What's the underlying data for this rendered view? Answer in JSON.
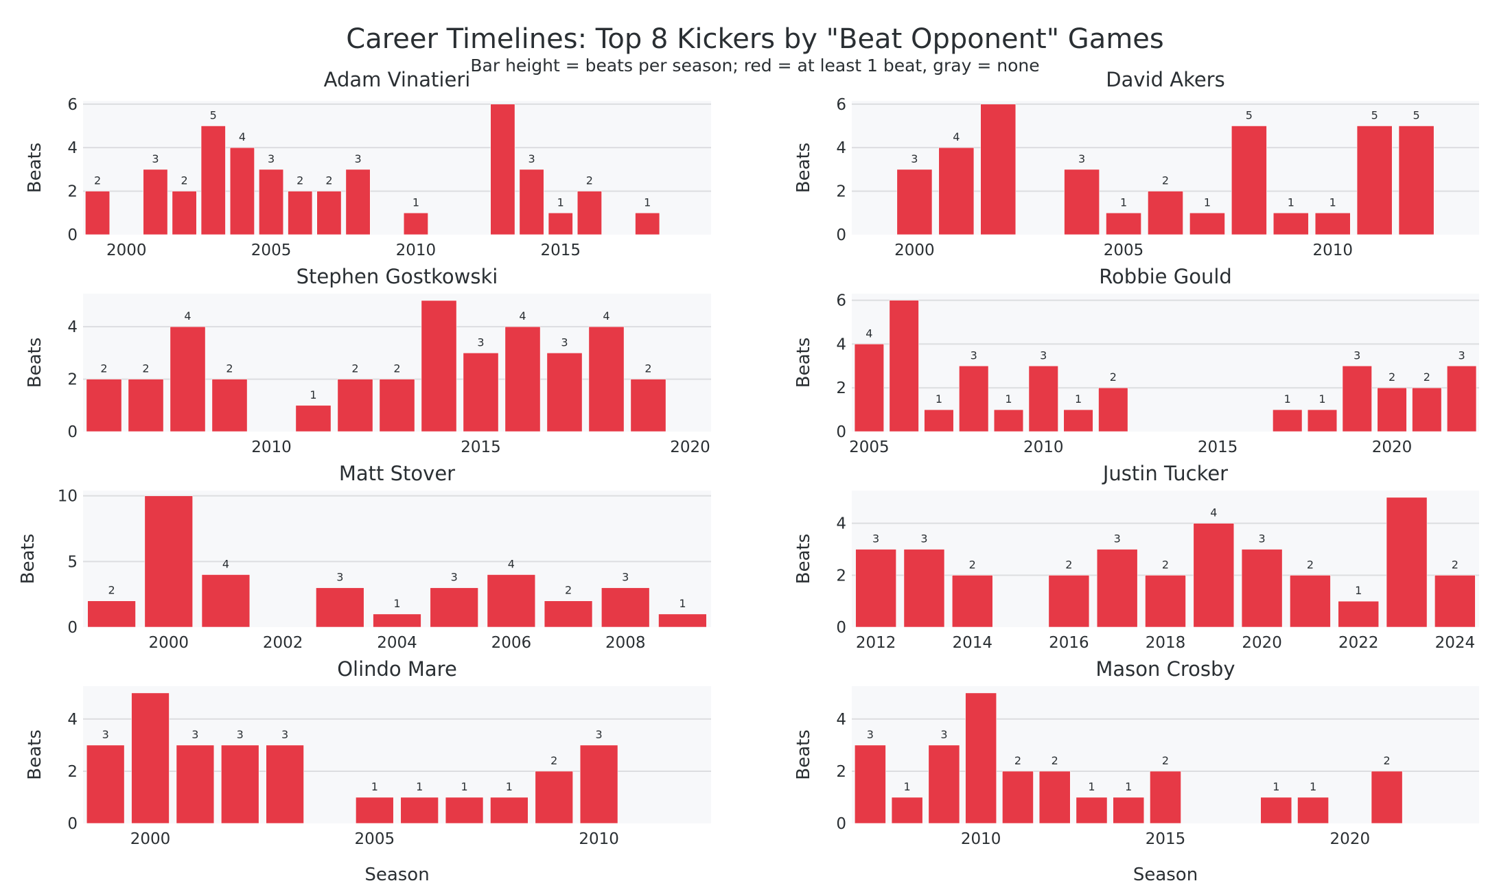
{
  "title": "Career Timelines: Top 8 Kickers by \"Beat Opponent\" Games",
  "subtitle": "Bar height = beats per season; red = at least 1 beat, gray = none",
  "colors": {
    "beat": "#e63946",
    "none": "#b0b0b0",
    "plot_bg": "#f7f8fa",
    "grid": "#dcdde0"
  },
  "chart_data": [
    {
      "type": "bar",
      "title": "Adam Vinatieri",
      "xlabel": "",
      "ylabel": "Beats",
      "xlim": [
        1998.5,
        2020.2
      ],
      "ylim": [
        0,
        6.15
      ],
      "yticks": [
        0,
        2,
        4,
        6
      ],
      "xticks": [
        2000,
        2005,
        2010,
        2015
      ],
      "grid": true,
      "x": [
        1999,
        2000,
        2001,
        2002,
        2003,
        2004,
        2005,
        2006,
        2007,
        2008,
        2009,
        2010,
        2011,
        2012,
        2013,
        2014,
        2015,
        2016,
        2017,
        2018
      ],
      "values": [
        2,
        0,
        3,
        2,
        5,
        4,
        3,
        2,
        2,
        3,
        0,
        1,
        0,
        0,
        6,
        3,
        1,
        2,
        0,
        1
      ]
    },
    {
      "type": "bar",
      "title": "David Akers",
      "xlabel": "",
      "ylabel": "Beats",
      "xlim": [
        1998.5,
        2013.5
      ],
      "ylim": [
        0,
        6.15
      ],
      "yticks": [
        0,
        2,
        4,
        6
      ],
      "xticks": [
        2000,
        2005,
        2010
      ],
      "grid": true,
      "x": [
        2000,
        2001,
        2002,
        2003,
        2004,
        2005,
        2006,
        2007,
        2008,
        2009,
        2010,
        2011,
        2012
      ],
      "values": [
        3,
        4,
        6,
        0,
        3,
        1,
        2,
        1,
        5,
        1,
        1,
        5,
        5
      ]
    },
    {
      "type": "bar",
      "title": "Stephen Gostkowski",
      "xlabel": "",
      "ylabel": "Beats",
      "xlim": [
        2005.5,
        2020.5
      ],
      "ylim": [
        0,
        5.26
      ],
      "yticks": [
        0,
        2,
        4
      ],
      "xticks": [
        2010,
        2015,
        2020
      ],
      "grid": true,
      "x": [
        2006,
        2007,
        2008,
        2009,
        2010,
        2011,
        2012,
        2013,
        2014,
        2015,
        2016,
        2017,
        2018,
        2019
      ],
      "values": [
        2,
        2,
        4,
        2,
        0,
        1,
        2,
        2,
        5,
        3,
        4,
        3,
        4,
        2
      ]
    },
    {
      "type": "bar",
      "title": "Robbie Gould",
      "xlabel": "",
      "ylabel": "Beats",
      "xlim": [
        2004.5,
        2022.5
      ],
      "ylim": [
        0,
        6.3
      ],
      "yticks": [
        0,
        2,
        4,
        6
      ],
      "xticks": [
        2005,
        2010,
        2015,
        2020
      ],
      "grid": true,
      "x": [
        2005,
        2006,
        2007,
        2008,
        2009,
        2010,
        2011,
        2012,
        2013,
        2014,
        2015,
        2016,
        2017,
        2018,
        2019,
        2020,
        2021,
        2022
      ],
      "values": [
        4,
        6,
        1,
        3,
        1,
        3,
        1,
        2,
        0,
        0,
        0,
        0,
        1,
        1,
        3,
        2,
        2,
        3
      ]
    },
    {
      "type": "bar",
      "title": "Matt Stover",
      "xlabel": "",
      "ylabel": "Beats",
      "xlim": [
        1998.5,
        2009.5
      ],
      "ylim": [
        0,
        10.4
      ],
      "yticks": [
        0,
        5,
        10
      ],
      "xticks": [
        2000,
        2002,
        2004,
        2006,
        2008
      ],
      "grid": true,
      "x": [
        1999,
        2000,
        2001,
        2002,
        2003,
        2004,
        2005,
        2006,
        2007,
        2008,
        2009
      ],
      "values": [
        2,
        10,
        4,
        0,
        3,
        1,
        3,
        4,
        2,
        3,
        1
      ]
    },
    {
      "type": "bar",
      "title": "Justin Tucker",
      "xlabel": "",
      "ylabel": "Beats",
      "xlim": [
        2011.5,
        2024.5
      ],
      "ylim": [
        0,
        5.26
      ],
      "yticks": [
        0,
        2,
        4
      ],
      "xticks": [
        2012,
        2014,
        2016,
        2018,
        2020,
        2022,
        2024
      ],
      "grid": true,
      "x": [
        2012,
        2013,
        2014,
        2015,
        2016,
        2017,
        2018,
        2019,
        2020,
        2021,
        2022,
        2023,
        2024
      ],
      "values": [
        3,
        3,
        2,
        0,
        2,
        3,
        2,
        4,
        3,
        2,
        1,
        5,
        2
      ]
    },
    {
      "type": "bar",
      "title": "Olindo Mare",
      "xlabel": "Season",
      "ylabel": "Beats",
      "xlim": [
        1998.5,
        2012.5
      ],
      "ylim": [
        0,
        5.26
      ],
      "yticks": [
        0,
        2,
        4
      ],
      "xticks": [
        2000,
        2005,
        2010
      ],
      "grid": true,
      "x": [
        1999,
        2000,
        2001,
        2002,
        2003,
        2004,
        2005,
        2006,
        2007,
        2008,
        2009,
        2010,
        2011,
        2012
      ],
      "values": [
        3,
        5,
        3,
        3,
        3,
        0,
        1,
        1,
        1,
        1,
        2,
        3,
        0,
        0
      ]
    },
    {
      "type": "bar",
      "title": "Mason Crosby",
      "xlabel": "Season",
      "ylabel": "Beats",
      "xlim": [
        2006.5,
        2023.5
      ],
      "ylim": [
        0,
        5.26
      ],
      "yticks": [
        0,
        2,
        4
      ],
      "xticks": [
        2010,
        2015,
        2020
      ],
      "grid": true,
      "x": [
        2007,
        2008,
        2009,
        2010,
        2011,
        2012,
        2013,
        2014,
        2015,
        2016,
        2017,
        2018,
        2019,
        2020,
        2021,
        2022,
        2023
      ],
      "values": [
        3,
        1,
        3,
        5,
        2,
        2,
        1,
        1,
        2,
        0,
        0,
        1,
        1,
        0,
        2,
        0,
        0
      ]
    }
  ]
}
